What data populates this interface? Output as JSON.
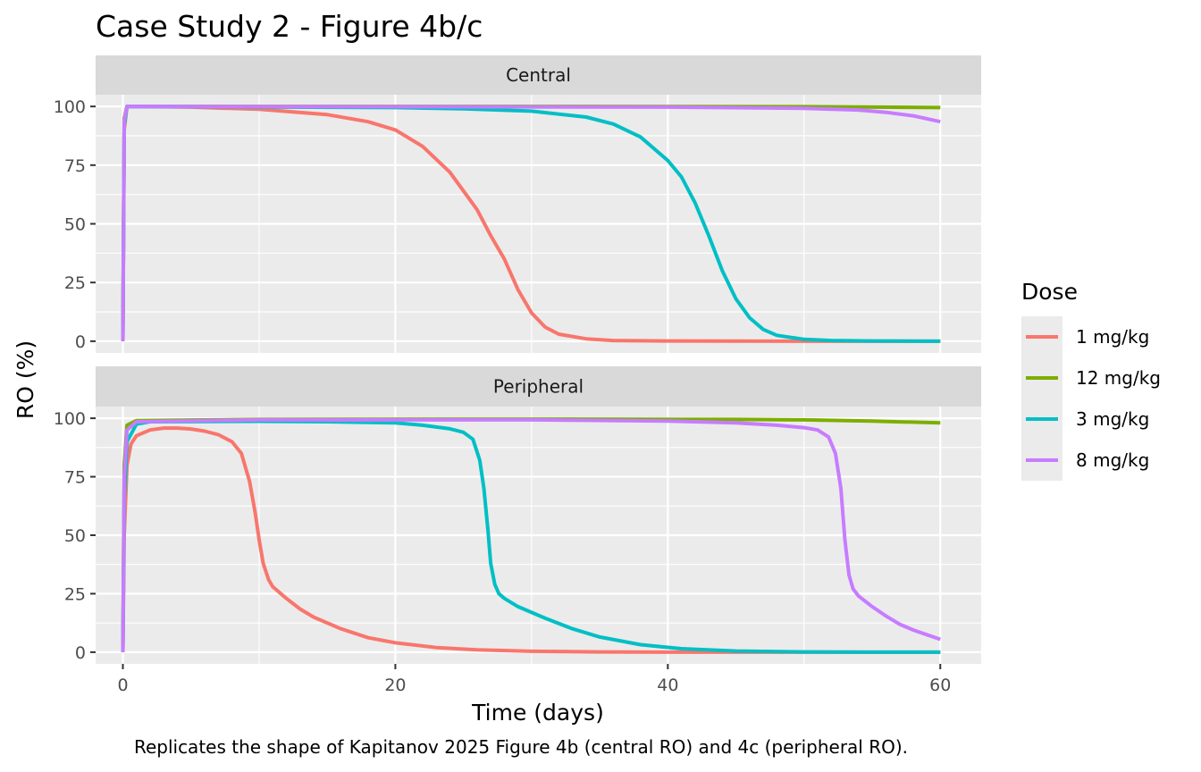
{
  "chart_data": {
    "type": "line",
    "title": "Case Study 2 - Figure 4b/c",
    "caption": "Replicates the shape of Kapitanov 2025 Figure 4b (central RO) and 4c (peripheral RO).",
    "xlabel": "Time (days)",
    "ylabel": "RO (%)",
    "xlim": [
      -2,
      63
    ],
    "ylim": [
      -5,
      105
    ],
    "x_ticks": [
      0,
      20,
      40,
      60
    ],
    "y_ticks": [
      0,
      25,
      50,
      75,
      100
    ],
    "grid": true,
    "legend": {
      "title": "Dose",
      "position": "right",
      "entries": [
        "1 mg/kg",
        "12 mg/kg",
        "3 mg/kg",
        "8 mg/kg"
      ]
    },
    "series_colors": {
      "1 mg/kg": "#F8766D",
      "12 mg/kg": "#7CAE00",
      "3 mg/kg": "#00BFC4",
      "8 mg/kg": "#C77CFF"
    },
    "panels": [
      {
        "label": "Central",
        "series": [
          {
            "name": "1 mg/kg",
            "points": [
              [
                0,
                0
              ],
              [
                0.1,
                90
              ],
              [
                0.3,
                100
              ],
              [
                5,
                99.7
              ],
              [
                10,
                98.8
              ],
              [
                15,
                96.5
              ],
              [
                18,
                93.5
              ],
              [
                20,
                90
              ],
              [
                22,
                83
              ],
              [
                24,
                72
              ],
              [
                26,
                56
              ],
              [
                27,
                45
              ],
              [
                28,
                35
              ],
              [
                29,
                22
              ],
              [
                30,
                12
              ],
              [
                31,
                6
              ],
              [
                32,
                3
              ],
              [
                34,
                1
              ],
              [
                36,
                0.3
              ],
              [
                40,
                0.1
              ],
              [
                50,
                0
              ],
              [
                60,
                0
              ]
            ]
          },
          {
            "name": "12 mg/kg",
            "points": [
              [
                0,
                0
              ],
              [
                0.1,
                95
              ],
              [
                0.3,
                100
              ],
              [
                10,
                100
              ],
              [
                30,
                100
              ],
              [
                50,
                99.9
              ],
              [
                60,
                99.5
              ]
            ]
          },
          {
            "name": "3 mg/kg",
            "points": [
              [
                0,
                0
              ],
              [
                0.1,
                92
              ],
              [
                0.3,
                100
              ],
              [
                10,
                99.8
              ],
              [
                20,
                99.5
              ],
              [
                25,
                99
              ],
              [
                30,
                98
              ],
              [
                34,
                95.5
              ],
              [
                36,
                92.5
              ],
              [
                38,
                87
              ],
              [
                40,
                77
              ],
              [
                41,
                70
              ],
              [
                42,
                59
              ],
              [
                43,
                45
              ],
              [
                44,
                30
              ],
              [
                45,
                18
              ],
              [
                46,
                10
              ],
              [
                47,
                5
              ],
              [
                48,
                2.5
              ],
              [
                50,
                0.8
              ],
              [
                52,
                0.3
              ],
              [
                55,
                0.1
              ],
              [
                60,
                0
              ]
            ]
          },
          {
            "name": "8 mg/kg",
            "points": [
              [
                0,
                0
              ],
              [
                0.1,
                94
              ],
              [
                0.3,
                100
              ],
              [
                20,
                99.9
              ],
              [
                40,
                99.7
              ],
              [
                50,
                99.2
              ],
              [
                54,
                98.5
              ],
              [
                56,
                97.5
              ],
              [
                58,
                96
              ],
              [
                60,
                93.5
              ]
            ]
          }
        ]
      },
      {
        "label": "Peripheral",
        "series": [
          {
            "name": "1 mg/kg",
            "points": [
              [
                0,
                0
              ],
              [
                0.1,
                50
              ],
              [
                0.3,
                80
              ],
              [
                0.6,
                89
              ],
              [
                1,
                92.5
              ],
              [
                2,
                95
              ],
              [
                3,
                95.8
              ],
              [
                4,
                95.8
              ],
              [
                5,
                95.4
              ],
              [
                6,
                94.5
              ],
              [
                7,
                93
              ],
              [
                8,
                90
              ],
              [
                8.7,
                85
              ],
              [
                9.3,
                73
              ],
              [
                9.7,
                60
              ],
              [
                10,
                48
              ],
              [
                10.3,
                38
              ],
              [
                10.7,
                31
              ],
              [
                11,
                28
              ],
              [
                12,
                23
              ],
              [
                13,
                18.5
              ],
              [
                14,
                15
              ],
              [
                16,
                10
              ],
              [
                18,
                6.2
              ],
              [
                20,
                4
              ],
              [
                23,
                2
              ],
              [
                26,
                1
              ],
              [
                30,
                0.4
              ],
              [
                35,
                0.1
              ],
              [
                40,
                0
              ],
              [
                60,
                0
              ]
            ]
          },
          {
            "name": "12 mg/kg",
            "points": [
              [
                0,
                0
              ],
              [
                0.1,
                80
              ],
              [
                0.3,
                97
              ],
              [
                1,
                99
              ],
              [
                10,
                99.5
              ],
              [
                30,
                99.6
              ],
              [
                45,
                99.5
              ],
              [
                50,
                99.3
              ],
              [
                55,
                98.8
              ],
              [
                60,
                98
              ]
            ]
          },
          {
            "name": "3 mg/kg",
            "points": [
              [
                0,
                0
              ],
              [
                0.1,
                65
              ],
              [
                0.3,
                90
              ],
              [
                1,
                97.5
              ],
              [
                2,
                98.5
              ],
              [
                10,
                98.7
              ],
              [
                15,
                98.5
              ],
              [
                20,
                98
              ],
              [
                22,
                97
              ],
              [
                24,
                95.5
              ],
              [
                25,
                94
              ],
              [
                25.7,
                91
              ],
              [
                26.2,
                82
              ],
              [
                26.5,
                70
              ],
              [
                26.8,
                52
              ],
              [
                27,
                38
              ],
              [
                27.3,
                29
              ],
              [
                27.6,
                25
              ],
              [
                28,
                23
              ],
              [
                29,
                19.5
              ],
              [
                31,
                14.5
              ],
              [
                33,
                10
              ],
              [
                35,
                6.5
              ],
              [
                38,
                3.2
              ],
              [
                41,
                1.5
              ],
              [
                45,
                0.5
              ],
              [
                50,
                0.1
              ],
              [
                55,
                0
              ],
              [
                60,
                0
              ]
            ]
          },
          {
            "name": "8 mg/kg",
            "points": [
              [
                0,
                0
              ],
              [
                0.1,
                75
              ],
              [
                0.3,
                95
              ],
              [
                1,
                98.5
              ],
              [
                10,
                99.3
              ],
              [
                30,
                99.3
              ],
              [
                40,
                98.8
              ],
              [
                45,
                98
              ],
              [
                48,
                97
              ],
              [
                50,
                96
              ],
              [
                51,
                95
              ],
              [
                51.8,
                92
              ],
              [
                52.3,
                85
              ],
              [
                52.7,
                70
              ],
              [
                53,
                48
              ],
              [
                53.3,
                33
              ],
              [
                53.6,
                27
              ],
              [
                54,
                24
              ],
              [
                55,
                19.5
              ],
              [
                56,
                15.5
              ],
              [
                57,
                12
              ],
              [
                58,
                9.5
              ],
              [
                59,
                7.5
              ],
              [
                60,
                5.5
              ]
            ]
          }
        ]
      }
    ]
  }
}
